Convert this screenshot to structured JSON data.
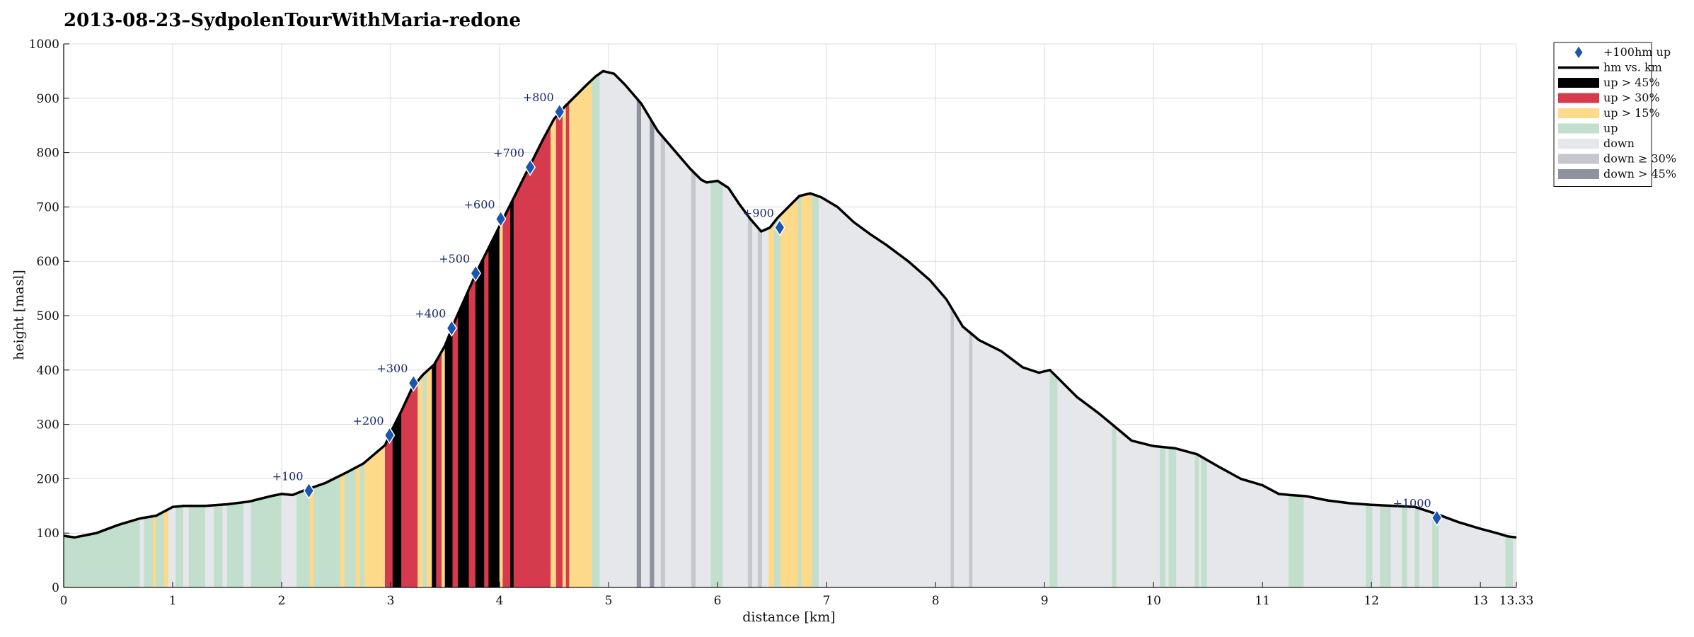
{
  "chart_data": {
    "type": "area",
    "title": "2013-08-23–SydpolenTourWithMaria-redone",
    "xlabel": "distance [km]",
    "ylabel": "height [masl]",
    "xlim": [
      0,
      13.33
    ],
    "ylim": [
      0,
      1000
    ],
    "grid": true,
    "legend_position": "top-right outside",
    "x_ticks": [
      "0",
      "1",
      "2",
      "3",
      "4",
      "5",
      "6",
      "7",
      "8",
      "9",
      "10",
      "11",
      "12",
      "13",
      "13.33"
    ],
    "y_ticks": [
      "0",
      "100",
      "200",
      "300",
      "400",
      "500",
      "600",
      "700",
      "800",
      "900",
      "1000"
    ],
    "x_tick_values": [
      0,
      1,
      2,
      3,
      4,
      5,
      6,
      7,
      8,
      9,
      10,
      11,
      12,
      13,
      13.33
    ],
    "y_tick_values": [
      0,
      100,
      200,
      300,
      400,
      500,
      600,
      700,
      800,
      900,
      1000
    ],
    "profile": {
      "name": "hm vs. km",
      "x": [
        0,
        0.1,
        0.3,
        0.5,
        0.7,
        0.85,
        1.0,
        1.1,
        1.3,
        1.5,
        1.7,
        1.9,
        2.0,
        2.1,
        2.2,
        2.4,
        2.6,
        2.75,
        2.85,
        2.95,
        3.0,
        3.1,
        3.2,
        3.3,
        3.4,
        3.5,
        3.6,
        3.7,
        3.8,
        3.9,
        4.0,
        4.1,
        4.2,
        4.3,
        4.4,
        4.5,
        4.6,
        4.7,
        4.8,
        4.88,
        4.95,
        5.05,
        5.15,
        5.3,
        5.45,
        5.6,
        5.75,
        5.85,
        5.9,
        6.0,
        6.1,
        6.2,
        6.3,
        6.4,
        6.48,
        6.55,
        6.65,
        6.75,
        6.85,
        6.95,
        7.1,
        7.25,
        7.4,
        7.55,
        7.75,
        7.95,
        8.1,
        8.25,
        8.4,
        8.6,
        8.8,
        8.95,
        9.05,
        9.15,
        9.3,
        9.5,
        9.65,
        9.8,
        10.0,
        10.2,
        10.4,
        10.6,
        10.8,
        11.0,
        11.15,
        11.25,
        11.4,
        11.6,
        11.8,
        12.0,
        12.2,
        12.4,
        12.6,
        12.8,
        13.0,
        13.15,
        13.25,
        13.33
      ],
      "y": [
        95,
        92,
        100,
        115,
        127,
        132,
        148,
        150,
        150,
        153,
        158,
        168,
        172,
        170,
        178,
        192,
        212,
        228,
        245,
        262,
        285,
        325,
        368,
        392,
        410,
        445,
        495,
        540,
        585,
        625,
        665,
        705,
        745,
        785,
        825,
        862,
        885,
        905,
        925,
        940,
        950,
        945,
        925,
        890,
        840,
        805,
        770,
        750,
        745,
        748,
        735,
        705,
        678,
        655,
        662,
        680,
        700,
        720,
        725,
        718,
        700,
        672,
        650,
        630,
        600,
        565,
        530,
        480,
        455,
        435,
        405,
        395,
        400,
        380,
        350,
        320,
        295,
        270,
        260,
        256,
        245,
        222,
        200,
        188,
        172,
        170,
        168,
        160,
        155,
        152,
        150,
        148,
        135,
        120,
        108,
        100,
        94,
        92
      ]
    },
    "categories_legend": [
      "+100hm up",
      "hm vs. km",
      "up > 45%",
      "up > 30%",
      "up > 15%",
      "up",
      "down",
      "down ≥ 30%",
      "down > 45%"
    ],
    "colors": {
      "up45": "#000000",
      "up30": "#d63a4d",
      "up15": "#fdd98a",
      "up": "#c1dfcc",
      "down": "#e6e7eb",
      "down30": "#c5c7cd",
      "down45": "#8f939f",
      "line": "#000000",
      "marker": "#1a56b0"
    },
    "segments": [
      {
        "from": 0.0,
        "to": 0.11,
        "c": "up"
      },
      {
        "from": 0.11,
        "to": 0.7,
        "c": "up"
      },
      {
        "from": 0.7,
        "to": 0.74,
        "c": "down"
      },
      {
        "from": 0.74,
        "to": 0.82,
        "c": "up"
      },
      {
        "from": 0.82,
        "to": 0.85,
        "c": "up15"
      },
      {
        "from": 0.85,
        "to": 0.92,
        "c": "up"
      },
      {
        "from": 0.92,
        "to": 0.96,
        "c": "up15"
      },
      {
        "from": 0.96,
        "to": 1.03,
        "c": "down"
      },
      {
        "from": 1.03,
        "to": 1.1,
        "c": "up"
      },
      {
        "from": 1.1,
        "to": 1.15,
        "c": "down"
      },
      {
        "from": 1.15,
        "to": 1.3,
        "c": "up"
      },
      {
        "from": 1.3,
        "to": 1.38,
        "c": "down"
      },
      {
        "from": 1.38,
        "to": 1.46,
        "c": "up"
      },
      {
        "from": 1.46,
        "to": 1.5,
        "c": "down"
      },
      {
        "from": 1.5,
        "to": 1.65,
        "c": "up"
      },
      {
        "from": 1.65,
        "to": 1.72,
        "c": "down"
      },
      {
        "from": 1.72,
        "to": 2.0,
        "c": "up"
      },
      {
        "from": 2.0,
        "to": 2.14,
        "c": "down"
      },
      {
        "from": 2.14,
        "to": 2.26,
        "c": "up"
      },
      {
        "from": 2.26,
        "to": 2.3,
        "c": "up15"
      },
      {
        "from": 2.3,
        "to": 2.54,
        "c": "up"
      },
      {
        "from": 2.54,
        "to": 2.58,
        "c": "up15"
      },
      {
        "from": 2.58,
        "to": 2.68,
        "c": "up"
      },
      {
        "from": 2.68,
        "to": 2.72,
        "c": "up15"
      },
      {
        "from": 2.72,
        "to": 2.76,
        "c": "up"
      },
      {
        "from": 2.76,
        "to": 2.95,
        "c": "up15"
      },
      {
        "from": 2.95,
        "to": 3.02,
        "c": "up30"
      },
      {
        "from": 3.02,
        "to": 3.1,
        "c": "up45"
      },
      {
        "from": 3.1,
        "to": 3.25,
        "c": "up30"
      },
      {
        "from": 3.25,
        "to": 3.3,
        "c": "up15"
      },
      {
        "from": 3.3,
        "to": 3.33,
        "c": "up"
      },
      {
        "from": 3.33,
        "to": 3.38,
        "c": "up15"
      },
      {
        "from": 3.38,
        "to": 3.42,
        "c": "up45"
      },
      {
        "from": 3.42,
        "to": 3.47,
        "c": "up30"
      },
      {
        "from": 3.47,
        "to": 3.5,
        "c": "up15"
      },
      {
        "from": 3.5,
        "to": 3.57,
        "c": "up45"
      },
      {
        "from": 3.57,
        "to": 3.62,
        "c": "up30"
      },
      {
        "from": 3.62,
        "to": 3.72,
        "c": "up45"
      },
      {
        "from": 3.72,
        "to": 3.78,
        "c": "up30"
      },
      {
        "from": 3.78,
        "to": 3.86,
        "c": "up45"
      },
      {
        "from": 3.86,
        "to": 3.9,
        "c": "up30"
      },
      {
        "from": 3.9,
        "to": 4.0,
        "c": "up45"
      },
      {
        "from": 4.0,
        "to": 4.03,
        "c": "up15"
      },
      {
        "from": 4.03,
        "to": 4.1,
        "c": "up30"
      },
      {
        "from": 4.1,
        "to": 4.13,
        "c": "up45"
      },
      {
        "from": 4.13,
        "to": 4.47,
        "c": "up30"
      },
      {
        "from": 4.47,
        "to": 4.52,
        "c": "up15"
      },
      {
        "from": 4.52,
        "to": 4.58,
        "c": "up30"
      },
      {
        "from": 4.58,
        "to": 4.61,
        "c": "up15"
      },
      {
        "from": 4.61,
        "to": 4.64,
        "c": "up30"
      },
      {
        "from": 4.64,
        "to": 4.85,
        "c": "up15"
      },
      {
        "from": 4.85,
        "to": 4.92,
        "c": "up"
      },
      {
        "from": 4.92,
        "to": 5.26,
        "c": "down"
      },
      {
        "from": 5.26,
        "to": 5.3,
        "c": "down45"
      },
      {
        "from": 5.3,
        "to": 5.38,
        "c": "down"
      },
      {
        "from": 5.38,
        "to": 5.42,
        "c": "down45"
      },
      {
        "from": 5.42,
        "to": 5.48,
        "c": "down"
      },
      {
        "from": 5.48,
        "to": 5.52,
        "c": "down30"
      },
      {
        "from": 5.52,
        "to": 5.76,
        "c": "down"
      },
      {
        "from": 5.76,
        "to": 5.8,
        "c": "down30"
      },
      {
        "from": 5.8,
        "to": 5.94,
        "c": "down"
      },
      {
        "from": 5.94,
        "to": 6.05,
        "c": "up"
      },
      {
        "from": 6.05,
        "to": 6.28,
        "c": "down"
      },
      {
        "from": 6.28,
        "to": 6.32,
        "c": "down30"
      },
      {
        "from": 6.32,
        "to": 6.37,
        "c": "down"
      },
      {
        "from": 6.37,
        "to": 6.41,
        "c": "down30"
      },
      {
        "from": 6.41,
        "to": 6.47,
        "c": "down"
      },
      {
        "from": 6.47,
        "to": 6.52,
        "c": "up15"
      },
      {
        "from": 6.52,
        "to": 6.58,
        "c": "up"
      },
      {
        "from": 6.58,
        "to": 6.74,
        "c": "up15"
      },
      {
        "from": 6.74,
        "to": 6.77,
        "c": "up"
      },
      {
        "from": 6.77,
        "to": 6.87,
        "c": "up15"
      },
      {
        "from": 6.87,
        "to": 6.93,
        "c": "up"
      },
      {
        "from": 6.93,
        "to": 8.14,
        "c": "down"
      },
      {
        "from": 8.14,
        "to": 8.17,
        "c": "down30"
      },
      {
        "from": 8.17,
        "to": 8.31,
        "c": "down"
      },
      {
        "from": 8.31,
        "to": 8.34,
        "c": "down30"
      },
      {
        "from": 8.34,
        "to": 9.05,
        "c": "down"
      },
      {
        "from": 9.05,
        "to": 9.12,
        "c": "up"
      },
      {
        "from": 9.12,
        "to": 9.62,
        "c": "down"
      },
      {
        "from": 9.62,
        "to": 9.66,
        "c": "up"
      },
      {
        "from": 9.66,
        "to": 10.06,
        "c": "down"
      },
      {
        "from": 10.06,
        "to": 10.11,
        "c": "up"
      },
      {
        "from": 10.11,
        "to": 10.14,
        "c": "down"
      },
      {
        "from": 10.14,
        "to": 10.21,
        "c": "up"
      },
      {
        "from": 10.21,
        "to": 10.38,
        "c": "down"
      },
      {
        "from": 10.38,
        "to": 10.42,
        "c": "up"
      },
      {
        "from": 10.42,
        "to": 10.44,
        "c": "down"
      },
      {
        "from": 10.44,
        "to": 10.49,
        "c": "up"
      },
      {
        "from": 10.49,
        "to": 11.24,
        "c": "down"
      },
      {
        "from": 11.24,
        "to": 11.38,
        "c": "up"
      },
      {
        "from": 11.38,
        "to": 11.95,
        "c": "down"
      },
      {
        "from": 11.95,
        "to": 12.01,
        "c": "up"
      },
      {
        "from": 12.01,
        "to": 12.08,
        "c": "down"
      },
      {
        "from": 12.08,
        "to": 12.18,
        "c": "up"
      },
      {
        "from": 12.18,
        "to": 12.28,
        "c": "down"
      },
      {
        "from": 12.28,
        "to": 12.33,
        "c": "up"
      },
      {
        "from": 12.33,
        "to": 12.4,
        "c": "down"
      },
      {
        "from": 12.4,
        "to": 12.44,
        "c": "up"
      },
      {
        "from": 12.44,
        "to": 12.56,
        "c": "down"
      },
      {
        "from": 12.56,
        "to": 12.62,
        "c": "up"
      },
      {
        "from": 12.62,
        "to": 13.23,
        "c": "down"
      },
      {
        "from": 13.23,
        "to": 13.3,
        "c": "up"
      },
      {
        "from": 13.3,
        "to": 13.33,
        "c": "down"
      }
    ],
    "markers": [
      {
        "label": "+100",
        "x": 2.25,
        "y": 178
      },
      {
        "label": "+200",
        "x": 2.99,
        "y": 280
      },
      {
        "label": "+300",
        "x": 3.21,
        "y": 376
      },
      {
        "label": "+400",
        "x": 3.56,
        "y": 477
      },
      {
        "label": "+500",
        "x": 3.78,
        "y": 578
      },
      {
        "label": "+600",
        "x": 4.01,
        "y": 678
      },
      {
        "label": "+700",
        "x": 4.28,
        "y": 773
      },
      {
        "label": "+800",
        "x": 4.55,
        "y": 875
      },
      {
        "label": "+900",
        "x": 6.57,
        "y": 662
      },
      {
        "label": "+1000",
        "x": 12.6,
        "y": 128
      }
    ]
  }
}
